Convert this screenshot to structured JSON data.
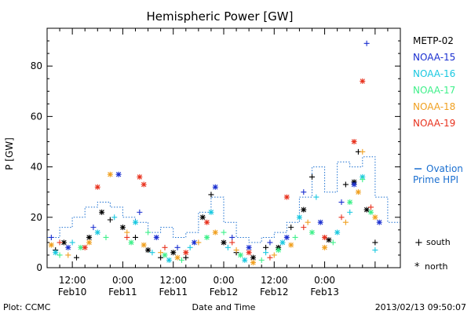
{
  "chart_data": {
    "type": "scatter",
    "title": "Hemispheric Power [GW]",
    "ylabel": "P [GW]",
    "xlabel": "Date and Time",
    "ylim": [
      0,
      95
    ],
    "xlim": [
      "2013-02-10T06:00",
      "2013-02-13T18:00"
    ],
    "grid": false,
    "x_ticks": [
      {
        "time": "2013-02-10T12:00",
        "line1": "12:00",
        "line2": "Feb10"
      },
      {
        "time": "2013-02-11T00:00",
        "line1": "0:00",
        "line2": "Feb11"
      },
      {
        "time": "2013-02-11T12:00",
        "line1": "12:00",
        "line2": "Feb11"
      },
      {
        "time": "2013-02-12T00:00",
        "line1": "0:00",
        "line2": "Feb12"
      },
      {
        "time": "2013-02-12T12:00",
        "line1": "12:00",
        "line2": "Feb12"
      },
      {
        "time": "2013-02-13T00:00",
        "line1": "0:00",
        "line2": "Feb13"
      }
    ],
    "y_ticks": [
      0,
      20,
      40,
      60,
      80
    ],
    "legend_placement": "right",
    "satellites": [
      {
        "name": "METP-02",
        "color": "#000000"
      },
      {
        "name": "NOAA-15",
        "color": "#1a2fd0"
      },
      {
        "name": "NOAA-16",
        "color": "#19c8e0"
      },
      {
        "name": "NOAA-17",
        "color": "#3ff08a"
      },
      {
        "name": "NOAA-18",
        "color": "#f0a020"
      },
      {
        "name": "NOAA-19",
        "color": "#e8321e"
      }
    ],
    "ovation_label_1": "Ovation",
    "ovation_label_2": "Prime HPI",
    "ovation_color": "#1a6fd0",
    "markers": {
      "south": "+",
      "north": "*",
      "south_label": "south",
      "north_label": "north"
    },
    "series": [
      {
        "name": "METP-02",
        "points": [
          [
            "2013-02-10T08:00",
            7,
            "S"
          ],
          [
            "2013-02-10T10:00",
            10,
            "N"
          ],
          [
            "2013-02-10T13:00",
            4,
            "S"
          ],
          [
            "2013-02-10T16:00",
            12,
            "N"
          ],
          [
            "2013-02-10T19:00",
            22,
            "N"
          ],
          [
            "2013-02-10T21:00",
            19,
            "S"
          ],
          [
            "2013-02-11T00:00",
            16,
            "N"
          ],
          [
            "2013-02-11T03:00",
            12,
            "S"
          ],
          [
            "2013-02-11T06:00",
            7,
            "N"
          ],
          [
            "2013-02-11T09:00",
            4,
            "S"
          ],
          [
            "2013-02-11T12:00",
            6,
            "N"
          ],
          [
            "2013-02-11T15:00",
            4,
            "S"
          ],
          [
            "2013-02-11T19:00",
            20,
            "N"
          ],
          [
            "2013-02-11T21:00",
            29,
            "S"
          ],
          [
            "2013-02-12T00:00",
            10,
            "N"
          ],
          [
            "2013-02-12T03:00",
            6,
            "S"
          ],
          [
            "2013-02-12T07:00",
            4,
            "N"
          ],
          [
            "2013-02-12T10:00",
            8,
            "S"
          ],
          [
            "2013-02-12T13:00",
            8,
            "N"
          ],
          [
            "2013-02-12T16:00",
            16,
            "S"
          ],
          [
            "2013-02-12T19:00",
            23,
            "N"
          ],
          [
            "2013-02-12T21:00",
            36,
            "S"
          ],
          [
            "2013-02-13T01:00",
            11,
            "N"
          ],
          [
            "2013-02-13T05:00",
            33,
            "S"
          ],
          [
            "2013-02-13T07:00",
            34,
            "N"
          ],
          [
            "2013-02-13T08:00",
            46,
            "S"
          ],
          [
            "2013-02-13T10:00",
            23,
            "N"
          ],
          [
            "2013-02-13T12:00",
            10,
            "S"
          ]
        ]
      },
      {
        "name": "NOAA-15",
        "points": [
          [
            "2013-02-10T07:00",
            12,
            "S"
          ],
          [
            "2013-02-10T11:00",
            8,
            "N"
          ],
          [
            "2013-02-10T17:00",
            16,
            "S"
          ],
          [
            "2013-02-10T23:00",
            37,
            "N"
          ],
          [
            "2013-02-11T04:00",
            22,
            "S"
          ],
          [
            "2013-02-11T08:00",
            12,
            "N"
          ],
          [
            "2013-02-11T13:00",
            8,
            "S"
          ],
          [
            "2013-02-11T17:00",
            10,
            "N"
          ],
          [
            "2013-02-11T22:00",
            32,
            "N"
          ],
          [
            "2013-02-12T02:00",
            12,
            "S"
          ],
          [
            "2013-02-12T06:00",
            8,
            "N"
          ],
          [
            "2013-02-12T11:00",
            10,
            "S"
          ],
          [
            "2013-02-12T15:00",
            12,
            "N"
          ],
          [
            "2013-02-12T19:00",
            30,
            "S"
          ],
          [
            "2013-02-12T23:00",
            18,
            "N"
          ],
          [
            "2013-02-13T04:00",
            26,
            "S"
          ],
          [
            "2013-02-13T07:00",
            33,
            "N"
          ],
          [
            "2013-02-13T10:00",
            89,
            "S"
          ],
          [
            "2013-02-13T13:00",
            18,
            "N"
          ]
        ]
      },
      {
        "name": "NOAA-16",
        "points": [
          [
            "2013-02-10T08:00",
            6,
            "N"
          ],
          [
            "2013-02-10T12:00",
            10,
            "S"
          ],
          [
            "2013-02-10T18:00",
            14,
            "N"
          ],
          [
            "2013-02-10T22:00",
            20,
            "S"
          ],
          [
            "2013-02-11T03:00",
            18,
            "N"
          ],
          [
            "2013-02-11T07:00",
            6,
            "S"
          ],
          [
            "2013-02-11T11:00",
            3,
            "N"
          ],
          [
            "2013-02-11T16:00",
            8,
            "S"
          ],
          [
            "2013-02-11T21:00",
            22,
            "N"
          ],
          [
            "2013-02-12T01:00",
            8,
            "S"
          ],
          [
            "2013-02-12T05:00",
            3,
            "N"
          ],
          [
            "2013-02-12T10:00",
            6,
            "S"
          ],
          [
            "2013-02-12T14:00",
            10,
            "N"
          ],
          [
            "2013-02-12T18:00",
            20,
            "N"
          ],
          [
            "2013-02-12T22:00",
            28,
            "S"
          ],
          [
            "2013-02-13T03:00",
            14,
            "N"
          ],
          [
            "2013-02-13T06:00",
            22,
            "S"
          ],
          [
            "2013-02-13T09:00",
            36,
            "N"
          ],
          [
            "2013-02-13T12:00",
            7,
            "S"
          ]
        ]
      },
      {
        "name": "NOAA-17",
        "points": [
          [
            "2013-02-10T09:00",
            5,
            "S"
          ],
          [
            "2013-02-10T14:00",
            8,
            "N"
          ],
          [
            "2013-02-10T20:00",
            12,
            "S"
          ],
          [
            "2013-02-11T02:00",
            10,
            "N"
          ],
          [
            "2013-02-11T06:00",
            14,
            "S"
          ],
          [
            "2013-02-11T10:00",
            5,
            "N"
          ],
          [
            "2013-02-11T14:00",
            3,
            "S"
          ],
          [
            "2013-02-11T20:00",
            12,
            "N"
          ],
          [
            "2013-02-12T00:00",
            14,
            "S"
          ],
          [
            "2013-02-12T04:00",
            5,
            "N"
          ],
          [
            "2013-02-12T09:00",
            3,
            "S"
          ],
          [
            "2013-02-12T13:00",
            7,
            "N"
          ],
          [
            "2013-02-12T17:00",
            12,
            "S"
          ],
          [
            "2013-02-12T21:00",
            14,
            "N"
          ],
          [
            "2013-02-13T02:00",
            10,
            "S"
          ],
          [
            "2013-02-13T06:00",
            26,
            "N"
          ],
          [
            "2013-02-13T09:00",
            35,
            "S"
          ],
          [
            "2013-02-13T11:00",
            22,
            "N"
          ]
        ]
      },
      {
        "name": "NOAA-18",
        "points": [
          [
            "2013-02-10T07:00",
            9,
            "N"
          ],
          [
            "2013-02-10T11:00",
            5,
            "S"
          ],
          [
            "2013-02-10T16:00",
            10,
            "N"
          ],
          [
            "2013-02-10T21:00",
            37,
            "N"
          ],
          [
            "2013-02-11T01:00",
            14,
            "S"
          ],
          [
            "2013-02-11T05:00",
            9,
            "N"
          ],
          [
            "2013-02-11T09:00",
            6,
            "S"
          ],
          [
            "2013-02-11T13:00",
            4,
            "N"
          ],
          [
            "2013-02-11T18:00",
            10,
            "S"
          ],
          [
            "2013-02-11T22:00",
            14,
            "N"
          ],
          [
            "2013-02-12T03:00",
            7,
            "S"
          ],
          [
            "2013-02-12T07:00",
            2,
            "N"
          ],
          [
            "2013-02-12T12:00",
            5,
            "S"
          ],
          [
            "2013-02-12T16:00",
            9,
            "N"
          ],
          [
            "2013-02-12T20:00",
            18,
            "S"
          ],
          [
            "2013-02-13T00:00",
            8,
            "N"
          ],
          [
            "2013-02-13T05:00",
            18,
            "S"
          ],
          [
            "2013-02-13T08:00",
            30,
            "N"
          ],
          [
            "2013-02-13T09:00",
            46,
            "S"
          ],
          [
            "2013-02-13T12:00",
            20,
            "N"
          ]
        ]
      },
      {
        "name": "NOAA-19",
        "points": [
          [
            "2013-02-10T09:00",
            10,
            "S"
          ],
          [
            "2013-02-10T15:00",
            8,
            "N"
          ],
          [
            "2013-02-10T18:00",
            32,
            "N"
          ],
          [
            "2013-02-11T01:00",
            12,
            "S"
          ],
          [
            "2013-02-11T04:00",
            36,
            "N"
          ],
          [
            "2013-02-11T05:00",
            33,
            "N"
          ],
          [
            "2013-02-11T10:00",
            8,
            "S"
          ],
          [
            "2013-02-11T15:00",
            6,
            "N"
          ],
          [
            "2013-02-11T20:00",
            18,
            "N"
          ],
          [
            "2013-02-12T02:00",
            10,
            "S"
          ],
          [
            "2013-02-12T06:00",
            6,
            "N"
          ],
          [
            "2013-02-12T11:00",
            4,
            "S"
          ],
          [
            "2013-02-12T15:00",
            28,
            "N"
          ],
          [
            "2013-02-12T19:00",
            16,
            "S"
          ],
          [
            "2013-02-13T00:00",
            12,
            "N"
          ],
          [
            "2013-02-13T04:00",
            20,
            "S"
          ],
          [
            "2013-02-13T07:00",
            50,
            "N"
          ],
          [
            "2013-02-13T09:00",
            74,
            "N"
          ],
          [
            "2013-02-13T11:00",
            24,
            "S"
          ]
        ]
      }
    ],
    "ovation_hpi": [
      [
        "2013-02-10T06:00",
        12
      ],
      [
        "2013-02-10T09:00",
        16
      ],
      [
        "2013-02-10T12:00",
        20
      ],
      [
        "2013-02-10T15:00",
        24
      ],
      [
        "2013-02-10T18:00",
        26
      ],
      [
        "2013-02-10T21:00",
        24
      ],
      [
        "2013-02-11T00:00",
        20
      ],
      [
        "2013-02-11T03:00",
        18
      ],
      [
        "2013-02-11T06:00",
        14
      ],
      [
        "2013-02-11T09:00",
        16
      ],
      [
        "2013-02-11T12:00",
        12
      ],
      [
        "2013-02-11T15:00",
        14
      ],
      [
        "2013-02-11T18:00",
        22
      ],
      [
        "2013-02-11T21:00",
        28
      ],
      [
        "2013-02-12T00:00",
        18
      ],
      [
        "2013-02-12T03:00",
        12
      ],
      [
        "2013-02-12T06:00",
        10
      ],
      [
        "2013-02-12T09:00",
        12
      ],
      [
        "2013-02-12T12:00",
        14
      ],
      [
        "2013-02-12T15:00",
        18
      ],
      [
        "2013-02-12T18:00",
        28
      ],
      [
        "2013-02-12T21:00",
        40
      ],
      [
        "2013-02-13T00:00",
        30
      ],
      [
        "2013-02-13T03:00",
        42
      ],
      [
        "2013-02-13T06:00",
        40
      ],
      [
        "2013-02-13T09:00",
        44
      ],
      [
        "2013-02-13T12:00",
        28
      ],
      [
        "2013-02-13T15:00",
        18
      ]
    ]
  },
  "footer": {
    "plot_credit": "Plot: CCMC",
    "timestamp": "2013/02/13 09:50:07"
  }
}
